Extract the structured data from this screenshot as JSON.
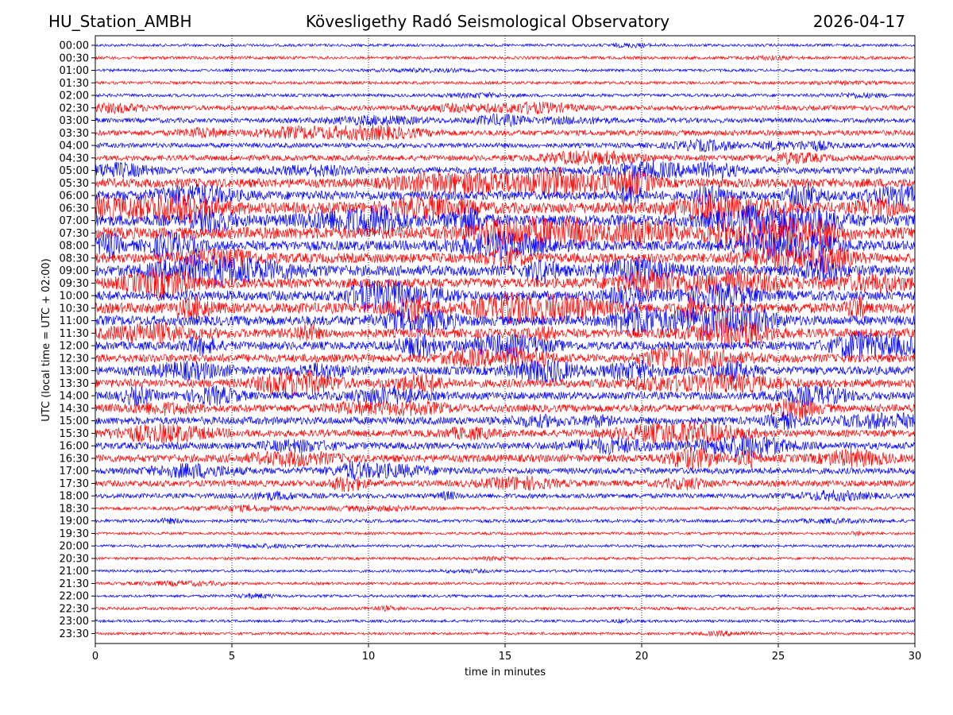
{
  "header": {
    "station": "HU_Station_AMBH",
    "observatory": "Kövesligethy Radó Seismological Observatory",
    "date": "2026-04-17"
  },
  "chart_data": {
    "type": "line",
    "subtype": "helicorder",
    "xlabel": "time in minutes",
    "ylabel": "UTC (local time = UTC + 02:00)",
    "xlim": [
      0,
      30
    ],
    "xticks": [
      "0",
      "5",
      "10",
      "15",
      "20",
      "25",
      "30"
    ],
    "grid": "vertical dotted at x ticks",
    "colors": [
      "#0000ff",
      "#ff0000"
    ],
    "rows": [
      "00:00",
      "00:30",
      "01:00",
      "01:30",
      "02:00",
      "02:30",
      "03:00",
      "03:30",
      "04:00",
      "04:30",
      "05:00",
      "05:30",
      "06:00",
      "06:30",
      "07:00",
      "07:30",
      "08:00",
      "08:30",
      "09:00",
      "09:30",
      "10:00",
      "10:30",
      "11:00",
      "11:30",
      "12:00",
      "12:30",
      "13:00",
      "13:30",
      "14:00",
      "14:30",
      "15:00",
      "15:30",
      "16:00",
      "16:30",
      "17:00",
      "17:30",
      "18:00",
      "18:30",
      "19:00",
      "19:30",
      "20:00",
      "20:30",
      "21:00",
      "21:30",
      "22:00",
      "22:30",
      "23:00",
      "23:30"
    ],
    "relative_noise_level": [
      0.1,
      0.12,
      0.1,
      0.12,
      0.13,
      0.25,
      0.25,
      0.3,
      0.25,
      0.3,
      0.4,
      0.55,
      0.55,
      0.7,
      0.7,
      0.75,
      0.6,
      0.6,
      0.65,
      0.6,
      0.6,
      0.65,
      0.6,
      0.55,
      0.5,
      0.5,
      0.5,
      0.5,
      0.45,
      0.45,
      0.45,
      0.4,
      0.4,
      0.45,
      0.35,
      0.35,
      0.25,
      0.15,
      0.15,
      0.1,
      0.1,
      0.1,
      0.1,
      0.1,
      0.1,
      0.12,
      0.1,
      0.1
    ]
  }
}
